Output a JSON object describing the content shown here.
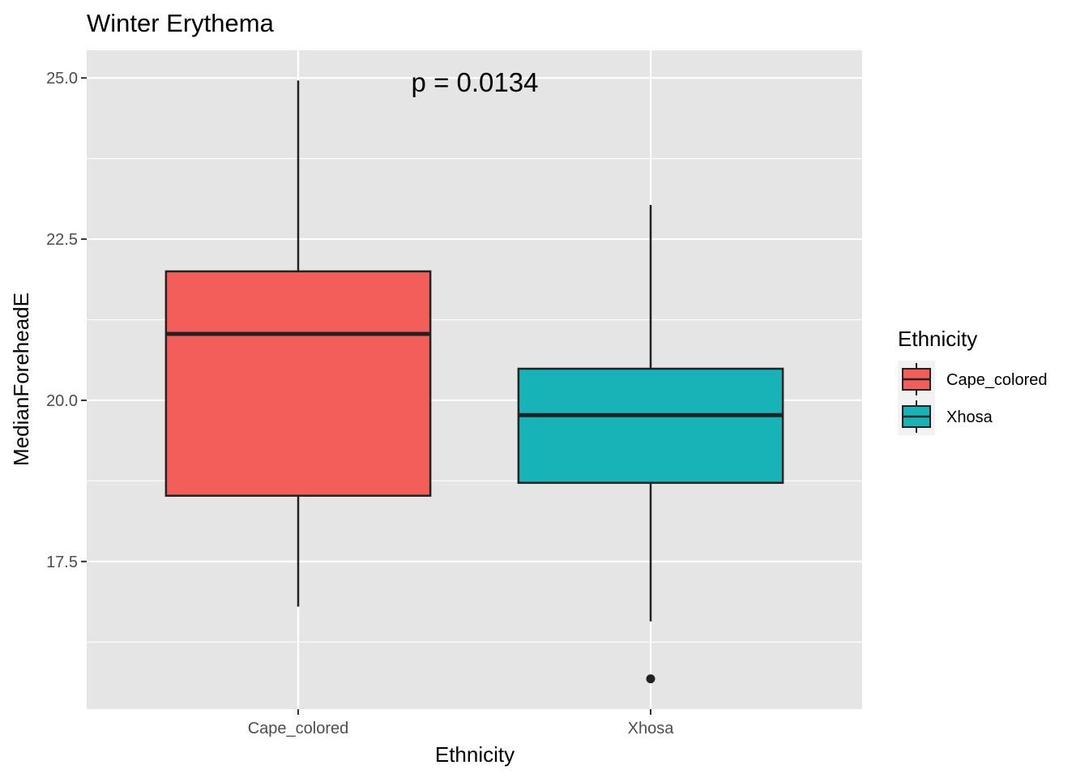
{
  "chart_data": {
    "type": "boxplot",
    "title": "Winter Erythema",
    "xlabel": "Ethnicity",
    "ylabel": "MedianForeheadE",
    "annotation": "p = 0.0134",
    "ylim": [
      15.21,
      25.43
    ],
    "yticks": [
      17.5,
      20.0,
      22.5,
      25.0
    ],
    "ytick_labels": [
      "17.5",
      "20.0",
      "22.5",
      "25.0"
    ],
    "grid": true,
    "categories": [
      "Cape_colored",
      "Xhosa"
    ],
    "boxes": [
      {
        "category": "Cape_colored",
        "whisker_low": 16.8,
        "q1": 18.52,
        "median": 21.03,
        "q3": 22.0,
        "whisker_high": 24.96,
        "outliers": [],
        "color": "#F35E5A"
      },
      {
        "category": "Xhosa",
        "whisker_low": 16.57,
        "q1": 18.72,
        "median": 19.77,
        "q3": 20.49,
        "whisker_high": 23.03,
        "outliers": [
          15.68
        ],
        "color": "#17B3B7"
      }
    ],
    "legend": {
      "title": "Ethnicity",
      "position": "right",
      "entries": [
        "Cape_colored",
        "Xhosa"
      ]
    },
    "panel_background": "#E5E5E5"
  }
}
